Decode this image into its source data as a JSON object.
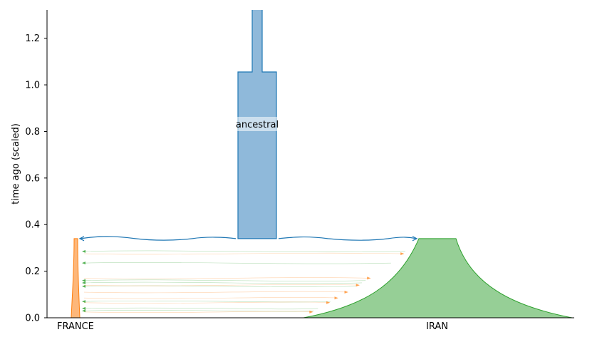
{
  "chart_data": {
    "type": "area",
    "ylabel": "time ago (scaled)",
    "ylim": [
      0,
      1.32
    ],
    "yticks": [
      "0.0",
      "0.2",
      "0.4",
      "0.6",
      "0.8",
      "1.0",
      "1.2"
    ],
    "ytick_values": [
      0.0,
      0.2,
      0.4,
      0.6,
      0.8,
      1.0,
      1.2
    ],
    "demes": [
      {
        "name": "ancestral",
        "label": "ancestral",
        "color": "#8fb9da",
        "edge": "#1f77b4",
        "start_time": 1.32,
        "end_time": 0.34,
        "shown_label": true
      },
      {
        "name": "FRANCE",
        "label": "FRANCE",
        "color": "#fdb77a",
        "edge": "#ff7f0e",
        "start_time": 0.34,
        "end_time": 0.0,
        "shown_label": true
      },
      {
        "name": "IRAN",
        "label": "IRAN",
        "color": "#96cf96",
        "edge": "#2ca02c",
        "start_time": 0.34,
        "end_time": 0.0,
        "shown_label": true
      }
    ],
    "split_time": 0.34,
    "migrations_to_france_times": [
      0.285,
      0.235,
      0.16,
      0.15,
      0.135,
      0.07,
      0.04,
      0.03
    ],
    "migrations_to_iran_times": [
      0.275,
      0.17,
      0.14,
      0.11,
      0.085,
      0.065,
      0.025
    ],
    "colors": {
      "ancestral": "#1f77b4",
      "france": "#ff7f0e",
      "iran": "#2ca02c"
    }
  }
}
